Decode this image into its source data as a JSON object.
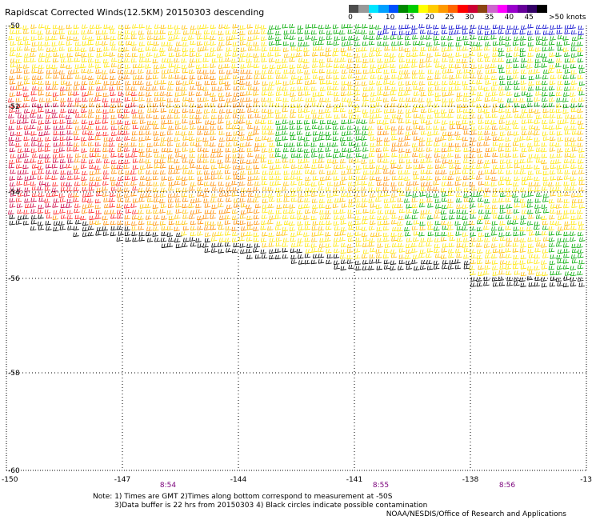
{
  "title": "Rapidscat Corrected Winds(12.5KM) 20150303 descending",
  "legend": {
    "labels": [
      "0",
      "5",
      "10",
      "15",
      "20",
      "25",
      "30",
      "35",
      "40",
      "45",
      ">50 knots"
    ],
    "colors": [
      "#4d4d4d",
      "#999999",
      "#00e5ff",
      "#00a0ff",
      "#0050ff",
      "#008800",
      "#00cc00",
      "#ffff00",
      "#ffcc00",
      "#ff9900",
      "#ff6600",
      "#ff0000",
      "#cc0033",
      "#8b4513",
      "#cc66cc",
      "#ff00ff",
      "#9900cc",
      "#660099",
      "#330066",
      "#000000"
    ]
  },
  "axes": {
    "y_labels": [
      "-50",
      "-52",
      "-54",
      "-56",
      "-58",
      "-60"
    ],
    "x_labels": [
      "-150",
      "-147",
      "-144",
      "-141",
      "-138",
      "-13"
    ]
  },
  "time_labels": [
    "8:54",
    "8:55",
    "8:56"
  ],
  "notes": [
    "Note: 1) Times are GMT 2)Times along bottom correspond to measurement at -50S",
    "3)Data buffer is 22 hrs from 20150303 4) Black circles indicate possible contamination"
  ],
  "credit": "NOAA/NESDIS/Office of Research and Applications",
  "wind_colors": {
    "black": "#000000",
    "yellow": "#ffe600",
    "gold": "#ffc000",
    "orange": "#ff8c00",
    "red": "#ff2020",
    "crimson": "#cc0040",
    "green": "#00aa00",
    "blue": "#0000cc"
  }
}
